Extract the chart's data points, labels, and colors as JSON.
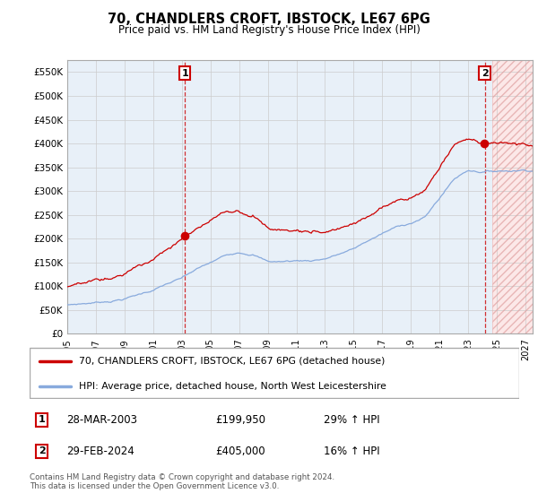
{
  "title": "70, CHANDLERS CROFT, IBSTOCK, LE67 6PG",
  "subtitle": "Price paid vs. HM Land Registry's House Price Index (HPI)",
  "legend_line1": "70, CHANDLERS CROFT, IBSTOCK, LE67 6PG (detached house)",
  "legend_line2": "HPI: Average price, detached house, North West Leicestershire",
  "sale1_date": "28-MAR-2003",
  "sale1_price": "£199,950",
  "sale1_hpi": "29% ↑ HPI",
  "sale1_year": 2003.21,
  "sale1_value": 199950,
  "sale2_date": "29-FEB-2024",
  "sale2_price": "£405,000",
  "sale2_hpi": "16% ↑ HPI",
  "sale2_year": 2024.15,
  "sale2_value": 405000,
  "footer": "Contains HM Land Registry data © Crown copyright and database right 2024.\nThis data is licensed under the Open Government Licence v3.0.",
  "red_color": "#cc0000",
  "blue_color": "#88aadd",
  "grid_color": "#cccccc",
  "bg_fill_color": "#e8f0f8",
  "hatch_fill_color": "#fce8e8",
  "ylim": [
    0,
    575000
  ],
  "yticks": [
    0,
    50000,
    100000,
    150000,
    200000,
    250000,
    300000,
    350000,
    400000,
    450000,
    500000,
    550000
  ],
  "ytick_labels": [
    "£0",
    "£50K",
    "£100K",
    "£150K",
    "£200K",
    "£250K",
    "£300K",
    "£350K",
    "£400K",
    "£450K",
    "£500K",
    "£550K"
  ],
  "xlim_start": 1995,
  "xlim_end": 2027.5,
  "hatch_start": 2024.7,
  "xtick_years": [
    1995,
    1997,
    1999,
    2001,
    2003,
    2005,
    2007,
    2009,
    2011,
    2013,
    2015,
    2017,
    2019,
    2021,
    2023,
    2025,
    2027
  ]
}
